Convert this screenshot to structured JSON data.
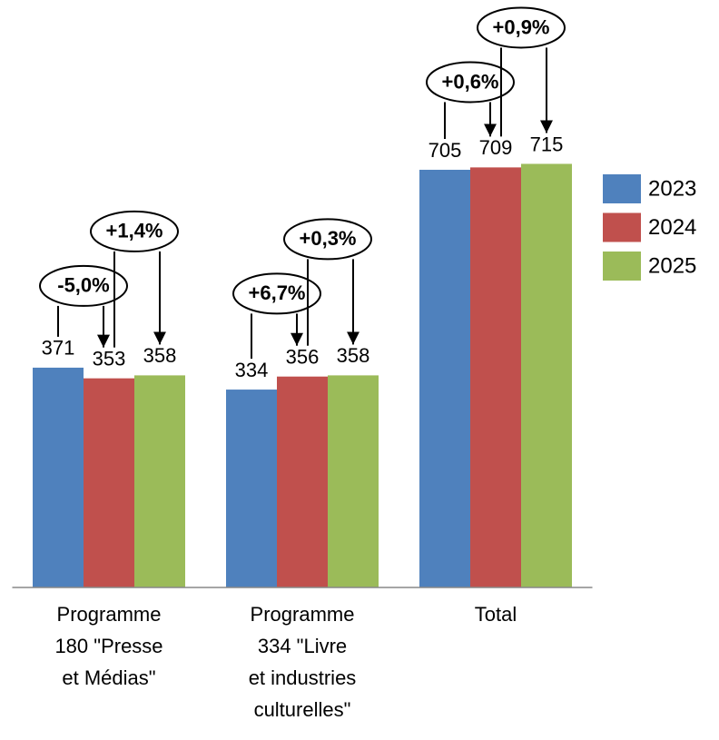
{
  "chart_data": {
    "type": "bar",
    "categories": [
      "Programme\n180 \"Presse\net Médias\"",
      "Programme\n334 \"Livre\net industries\nculturelles\"",
      "Total"
    ],
    "series": [
      {
        "name": "2023",
        "color": "#4f81bd",
        "values": [
          371,
          334,
          705
        ]
      },
      {
        "name": "2024",
        "color": "#c0504d",
        "values": [
          353,
          356,
          709
        ]
      },
      {
        "name": "2025",
        "color": "#9bbb59",
        "values": [
          358,
          358,
          715
        ]
      }
    ],
    "annotations": [
      [
        "-5,0%",
        "+1,4%"
      ],
      [
        "+6,7%",
        "+0,3%"
      ],
      [
        "+0,6%",
        "+0,9%"
      ]
    ],
    "ylim": [
      0,
      800
    ],
    "legend": "right"
  }
}
